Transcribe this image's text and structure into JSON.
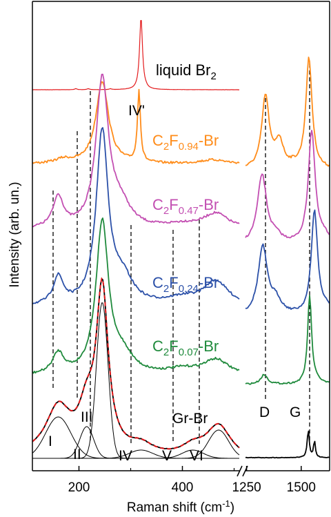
{
  "chart_data": {
    "type": "line",
    "title": "",
    "xlabel": "Raman shift (cm",
    "xlabel_sup": "-1",
    "xlabel_tail": ")",
    "ylabel": "Intensity (arb. un.)",
    "x_break": true,
    "x_axis_segments": [
      {
        "range": [
          110,
          510
        ],
        "ticks": [
          200,
          400
        ],
        "tick_labels": [
          "200",
          "400"
        ]
      },
      {
        "range": [
          1245,
          1630
        ],
        "ticks": [
          1250,
          1500
        ],
        "tick_labels": [
          "1250",
          "1500"
        ]
      }
    ],
    "y_ticks": "none",
    "grid": false,
    "legend": "none (traces labeled inline)",
    "series": [
      {
        "name": "liquid Br2",
        "label_main": "liquid Br",
        "label_sub": "2",
        "label_tail": "",
        "color": "#e31a1c",
        "peaks_cm-1": [
          {
            "x": 320,
            "height": 1.0,
            "width": 3
          }
        ]
      },
      {
        "name": "C2F0.94-Br",
        "label_main": "C",
        "label_sub": "2",
        "label_mid": "F",
        "label_sub2": "0.94",
        "label_tail": "-Br",
        "color": "#ff8c1a",
        "peaks_cm-1": [
          {
            "x": 245,
            "height": 0.75
          },
          {
            "x": 316,
            "height": 0.5,
            "width": 4
          },
          {
            "x": 1355,
            "height": 0.75
          },
          {
            "x": 1445,
            "height": 0.45
          },
          {
            "x": 1585,
            "height": 1.0
          }
        ]
      },
      {
        "name": "C2F0.47-Br",
        "label_main": "C",
        "label_sub": "2",
        "label_mid": "F",
        "label_sub2": "0.47",
        "label_tail": "-Br",
        "color": "#c34fb2",
        "peaks_cm-1": [
          {
            "x": 160,
            "height": 0.2
          },
          {
            "x": 245,
            "height": 1.0
          },
          {
            "x": 465,
            "height": 0.2
          },
          {
            "x": 1355,
            "height": 0.85
          },
          {
            "x": 1590,
            "height": 1.0
          }
        ]
      },
      {
        "name": "C2F0.24-Br",
        "label_main": "C",
        "label_sub": "2",
        "label_mid": "F",
        "label_sub2": "0.24",
        "label_tail": "-Br",
        "color": "#2b50a8",
        "peaks_cm-1": [
          {
            "x": 160,
            "height": 0.15
          },
          {
            "x": 245,
            "height": 1.0
          },
          {
            "x": 465,
            "height": 0.25
          },
          {
            "x": 1355,
            "height": 0.75
          },
          {
            "x": 1600,
            "height": 1.0
          }
        ]
      },
      {
        "name": "C2F0.07-Br",
        "label_main": "C",
        "label_sub": "2",
        "label_mid": "F",
        "label_sub2": "0.07",
        "label_tail": "-Br",
        "color": "#1f8a3c",
        "peaks_cm-1": [
          {
            "x": 160,
            "height": 0.15
          },
          {
            "x": 245,
            "height": 1.0
          },
          {
            "x": 465,
            "height": 0.2
          },
          {
            "x": 1355,
            "height": 0.1
          },
          {
            "x": 1590,
            "height": 1.0
          }
        ]
      },
      {
        "name": "Gr-Br",
        "color": "#000000",
        "fit_color": "#e31a1c",
        "peaks_cm-1": [
          {
            "x": 245,
            "height": 1.0
          },
          {
            "x": 465,
            "height": 0.18
          },
          {
            "x": 1582,
            "height": 0.4
          }
        ]
      }
    ],
    "fit_components": [
      {
        "label": "I",
        "x": 160,
        "height": 0.2
      },
      {
        "label": "II",
        "x": 215,
        "height": 0.17
      },
      {
        "label": "III",
        "x": 245,
        "height": 0.84
      },
      {
        "label": "IV",
        "x": 320,
        "height": 0.05
      },
      {
        "label": "V",
        "x": 420,
        "height": 0.05
      },
      {
        "label": "VI",
        "x": 470,
        "height": 0.17
      }
    ],
    "annotations": [
      "IV'",
      "Gr-Br",
      "D",
      "G"
    ]
  }
}
